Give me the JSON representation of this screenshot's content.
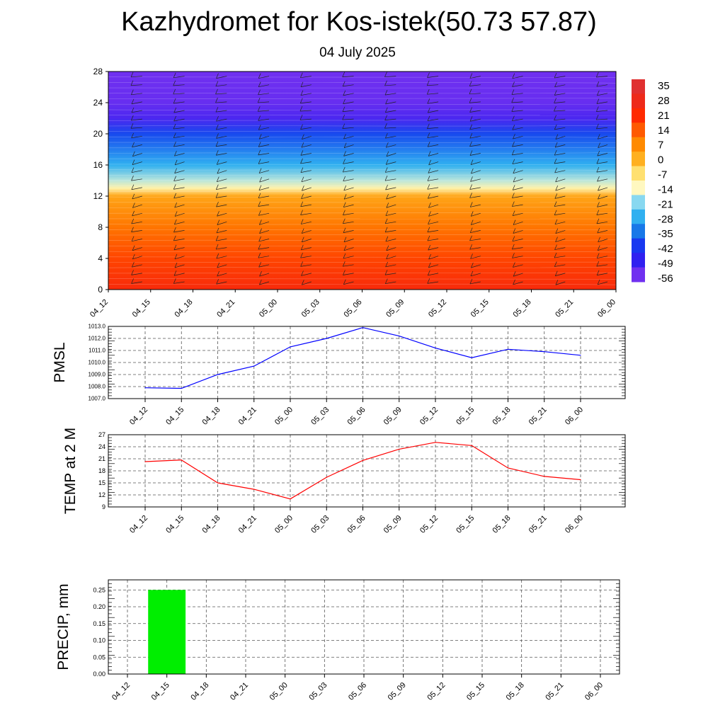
{
  "header": {
    "title": "Kazhydromet for Kos-istek(50.73 57.87)",
    "date": "04 July 2025"
  },
  "chart_data": [
    {
      "type": "heatmap",
      "title": "",
      "y_ticks": [
        "0",
        "4",
        "8",
        "12",
        "16",
        "20",
        "24",
        "28"
      ],
      "ylim": [
        0,
        28
      ],
      "x_ticks": [
        "04_12",
        "04_15",
        "04_18",
        "04_21",
        "05_00",
        "05_03",
        "05_06",
        "05_09",
        "05_12",
        "05_15",
        "05_18",
        "05_21",
        "06_00"
      ],
      "colorbar_labels": [
        "35",
        "28",
        "21",
        "14",
        "7",
        "0",
        "-7",
        "-14",
        "-21",
        "-28",
        "-35",
        "-42",
        "-49",
        "-56"
      ],
      "colorbar_colors": [
        "#e03030",
        "#ee2a1a",
        "#ff2a00",
        "#ff5a00",
        "#ff8a00",
        "#ffb020",
        "#ffe070",
        "#fff8c0",
        "#88d8f0",
        "#30b0f0",
        "#1878e8",
        "#1838f0",
        "#3020f0",
        "#7030f0"
      ],
      "temperature_profile": [
        {
          "level": 0,
          "value": 24
        },
        {
          "level": 4,
          "value": 17
        },
        {
          "level": 8,
          "value": 10
        },
        {
          "level": 12,
          "value": 2
        },
        {
          "level": 13,
          "value": -12
        },
        {
          "level": 14,
          "value": -18
        },
        {
          "level": 16,
          "value": -28
        },
        {
          "level": 20,
          "value": -40
        },
        {
          "level": 22,
          "value": -52
        },
        {
          "level": 24,
          "value": -55
        },
        {
          "level": 28,
          "value": -58
        }
      ]
    },
    {
      "type": "line",
      "ylabel": "PMSL",
      "ylim": [
        1007.0,
        1013.0
      ],
      "y_ticks": [
        "1007.0",
        "1008.0",
        "1009.0",
        "1010.0",
        "1011.0",
        "1012.0",
        "1013.0"
      ],
      "x": [
        "04_12",
        "04_15",
        "04_18",
        "04_21",
        "05_00",
        "05_03",
        "05_06",
        "05_09",
        "05_12",
        "05_15",
        "05_18",
        "05_21",
        "06_00"
      ],
      "values": [
        1007.9,
        1007.85,
        1009.0,
        1009.7,
        1011.3,
        1012.0,
        1012.9,
        1012.2,
        1011.2,
        1010.4,
        1011.1,
        1010.9,
        1010.6
      ],
      "color": "#0000ff",
      "grid": true
    },
    {
      "type": "line",
      "ylabel": "TEMP at 2 M",
      "ylim": [
        9,
        27
      ],
      "y_ticks": [
        "9",
        "12",
        "15",
        "18",
        "21",
        "24",
        "27"
      ],
      "x": [
        "04_12",
        "04_15",
        "04_18",
        "04_21",
        "05_00",
        "05_03",
        "05_06",
        "05_09",
        "05_12",
        "05_15",
        "05_18",
        "05_21",
        "06_00"
      ],
      "values": [
        20.3,
        20.7,
        15.0,
        13.4,
        11.0,
        16.4,
        20.6,
        23.4,
        25.1,
        24.3,
        18.7,
        16.6,
        15.8
      ],
      "color": "#ff0000",
      "grid": true
    },
    {
      "type": "bar",
      "ylabel": "PRECIP, mm",
      "ylim": [
        0,
        0.28
      ],
      "y_ticks": [
        "0.00",
        "0.05",
        "0.10",
        "0.15",
        "0.20",
        "0.25"
      ],
      "categories": [
        "04_12",
        "04_15",
        "04_18",
        "04_21",
        "05_00",
        "05_03",
        "05_06",
        "05_09",
        "05_12",
        "05_15",
        "05_18",
        "05_21",
        "06_00"
      ],
      "values": [
        0,
        0.25,
        0,
        0,
        0,
        0,
        0,
        0,
        0,
        0,
        0,
        0,
        0
      ],
      "color": "#00ee00",
      "grid": true
    }
  ]
}
